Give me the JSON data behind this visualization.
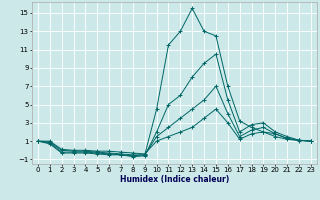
{
  "xlabel": "Humidex (Indice chaleur)",
  "bg_color": "#cce8e8",
  "grid_color": "#ffffff",
  "line_color": "#006666",
  "xlim": [
    -0.5,
    23.5
  ],
  "ylim": [
    -1.5,
    16.2
  ],
  "xticks": [
    0,
    1,
    2,
    3,
    4,
    5,
    6,
    7,
    8,
    9,
    10,
    11,
    12,
    13,
    14,
    15,
    16,
    17,
    18,
    19,
    20,
    21,
    22,
    23
  ],
  "yticks": [
    -1,
    1,
    3,
    5,
    7,
    9,
    11,
    13,
    15
  ],
  "lines": [
    {
      "x": [
        0,
        1,
        2,
        3,
        4,
        5,
        6,
        7,
        8,
        9,
        10,
        11,
        12,
        13,
        14,
        15,
        16,
        17,
        18,
        19,
        20,
        21,
        22,
        23
      ],
      "y": [
        1,
        0.7,
        -0.3,
        -0.3,
        -0.3,
        -0.4,
        -0.5,
        -0.5,
        -0.6,
        -0.5,
        4.5,
        11.5,
        13,
        15.5,
        13,
        12.5,
        7,
        3.2,
        2.5,
        2.0,
        1.8,
        1.3,
        1.1,
        1.0
      ]
    },
    {
      "x": [
        0,
        1,
        2,
        3,
        4,
        5,
        6,
        7,
        8,
        9,
        10,
        11,
        12,
        13,
        14,
        15,
        16,
        17,
        18,
        19,
        20,
        21,
        22,
        23
      ],
      "y": [
        1,
        0.8,
        -0.2,
        -0.2,
        -0.2,
        -0.3,
        -0.4,
        -0.5,
        -0.7,
        -0.6,
        2.0,
        5.0,
        6.0,
        8.0,
        9.5,
        10.5,
        5.5,
        2.0,
        2.8,
        3.0,
        2.0,
        1.5,
        1.1,
        1.0
      ]
    },
    {
      "x": [
        0,
        1,
        2,
        3,
        4,
        5,
        6,
        7,
        8,
        9,
        10,
        11,
        12,
        13,
        14,
        15,
        16,
        17,
        18,
        19,
        20,
        21,
        22,
        23
      ],
      "y": [
        1,
        0.9,
        0.0,
        -0.1,
        -0.1,
        -0.2,
        -0.3,
        -0.4,
        -0.5,
        -0.5,
        1.5,
        2.5,
        3.5,
        4.5,
        5.5,
        7.0,
        4.0,
        1.5,
        2.2,
        2.5,
        1.8,
        1.3,
        1.1,
        1.0
      ]
    },
    {
      "x": [
        0,
        1,
        2,
        3,
        4,
        5,
        6,
        7,
        8,
        9,
        10,
        11,
        12,
        13,
        14,
        15,
        16,
        17,
        18,
        19,
        20,
        21,
        22,
        23
      ],
      "y": [
        1,
        1.0,
        0.1,
        0.0,
        0.0,
        -0.1,
        -0.1,
        -0.2,
        -0.3,
        -0.4,
        1.0,
        1.5,
        2.0,
        2.5,
        3.5,
        4.5,
        3.0,
        1.2,
        1.8,
        2.0,
        1.5,
        1.2,
        1.05,
        1.0
      ]
    }
  ],
  "xlabel_fontsize": 5.5,
  "xlabel_color": "#000055",
  "tick_fontsize": 5.0,
  "linewidth": 0.7,
  "markersize": 2.5,
  "markeredgewidth": 0.7
}
